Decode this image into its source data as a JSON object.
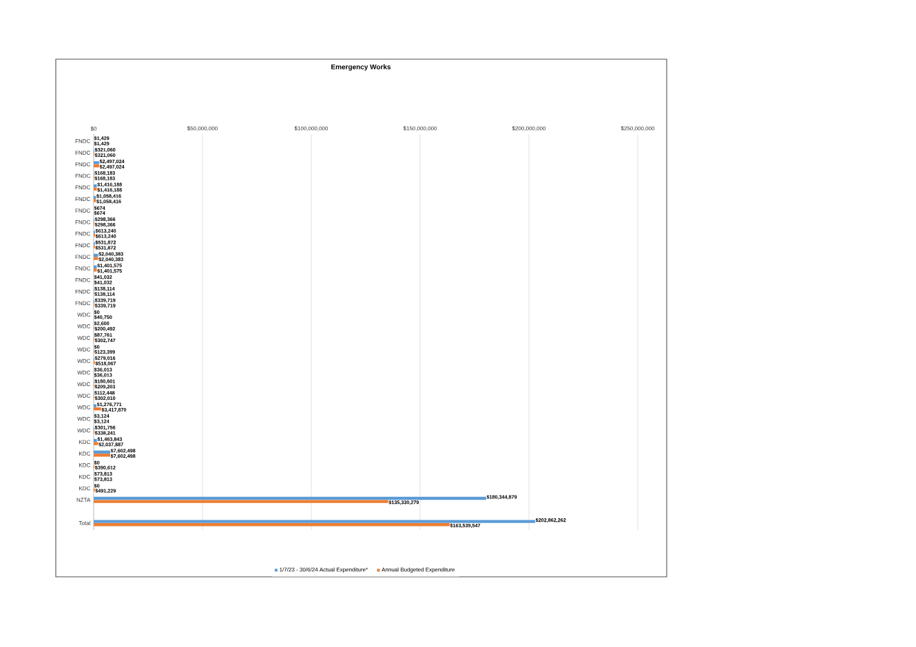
{
  "chart_data": {
    "type": "bar",
    "orientation": "horizontal",
    "title": "Emergency Works",
    "categories": [
      "FNDC",
      "FNDC",
      "FNDC",
      "FNDC",
      "FNDC",
      "FNDC",
      "FNDC",
      "FNDC",
      "FNDC",
      "FNDC",
      "FNDC",
      "FNDC",
      "FNDC",
      "FNDC",
      "FNDC",
      "WDC",
      "WDC",
      "WDC",
      "WDC",
      "WDC",
      "WDC",
      "WDC",
      "WDC",
      "WDC",
      "WDC",
      "WDC",
      "KDC",
      "KDC",
      "KDC",
      "KDC",
      "KDC",
      "NZTA",
      null,
      "Total"
    ],
    "series": [
      {
        "name": "1/7/23 - 30/6/24 Actual Expenditure*",
        "color": "#5b9bd5",
        "values": [
          1429,
          321060,
          2497024,
          168183,
          1416188,
          1058416,
          674,
          298366,
          613240,
          531872,
          2040383,
          1401575,
          41032,
          138114,
          339719,
          0,
          2600,
          87761,
          0,
          279016,
          36013,
          180601,
          112448,
          1276771,
          3124,
          301756,
          1463843,
          7602498,
          0,
          73813,
          0,
          180344879,
          null,
          202862262
        ],
        "value_labels": [
          "$1,429",
          "$321,060",
          "$2,497,024",
          "$168,183",
          "$1,416,188",
          "$1,058,416",
          "$674",
          "$298,366",
          "$613,240",
          "$531,872",
          "$2,040,383",
          "$1,401,575",
          "$41,032",
          "$138,114",
          "$339,719",
          "$0",
          "$2,600",
          "$87,761",
          "$0",
          "$279,016",
          "$36,013",
          "$180,601",
          "$112,448",
          "$1,276,771",
          "$3,124",
          "$301,756",
          "$1,463,843",
          "$7,602,498",
          "$0",
          "$73,813",
          "$0",
          "$180,344,879",
          null,
          "$202,862,262"
        ]
      },
      {
        "name": "Annual Budgeted Expenditure",
        "color": "#ed7d31",
        "values": [
          1429,
          321060,
          2497024,
          168183,
          1416188,
          1058416,
          674,
          298366,
          613240,
          531872,
          2040383,
          1401575,
          41032,
          138114,
          339719,
          40750,
          200492,
          302747,
          123399,
          518067,
          36013,
          209203,
          302010,
          3417870,
          3124,
          338241,
          2037887,
          7602498,
          390612,
          73813,
          491229,
          135330279,
          null,
          163539547
        ],
        "value_labels": [
          "$1,429",
          "$321,060",
          "$2,497,024",
          "$168,183",
          "$1,416,188",
          "$1,058,416",
          "$674",
          "$298,366",
          "$613,240",
          "$531,872",
          "$2,040,383",
          "$1,401,575",
          "$41,032",
          "$138,114",
          "$339,719",
          "$40,750",
          "$200,492",
          "$302,747",
          "$123,399",
          "$518,067",
          "$36,013",
          "$209,203",
          "$302,010",
          "$3,417,870",
          "$3,124",
          "$338,241",
          "$2,037,887",
          "$7,602,498",
          "$390,612",
          "$73,813",
          "$491,229",
          "$135,330,279",
          null,
          "$163,539,547"
        ]
      }
    ],
    "xlim": [
      0,
      250000000
    ],
    "xticks": [
      {
        "value": 0,
        "label": "$0"
      },
      {
        "value": 50000000,
        "label": "$50,000,000"
      },
      {
        "value": 100000000,
        "label": "$100,000,000"
      },
      {
        "value": 150000000,
        "label": "$150,000,000"
      },
      {
        "value": 200000000,
        "label": "$200,000,000"
      },
      {
        "value": 250000000,
        "label": "$250,000,000"
      }
    ],
    "grid": "x",
    "legend": "bottom"
  }
}
